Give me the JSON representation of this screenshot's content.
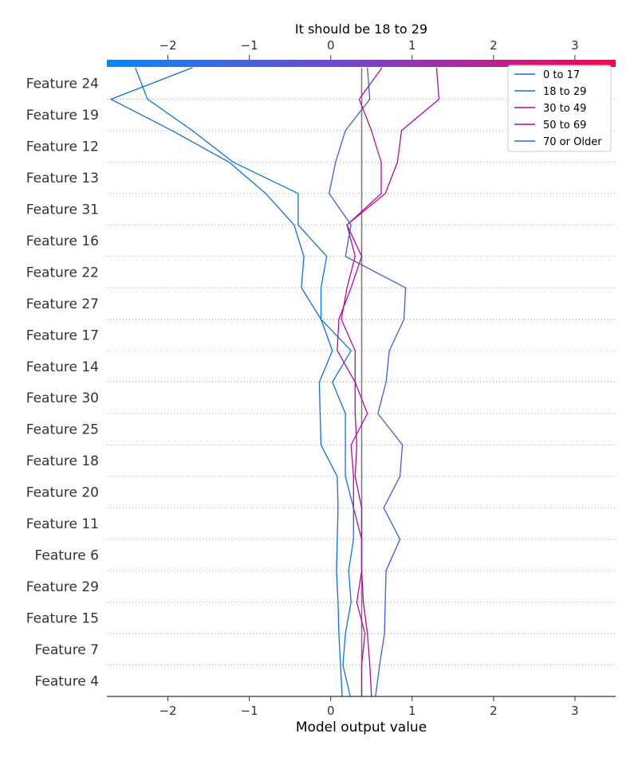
{
  "chart_data": {
    "type": "line",
    "title": "It should be 18 to 29",
    "xlabel": "Model output value",
    "xlim": [
      -2.75,
      3.5
    ],
    "xticks": [
      -2,
      -1,
      0,
      1,
      2,
      3
    ],
    "xtick_labels": [
      "−2",
      "−1",
      "0",
      "1",
      "2",
      "3"
    ],
    "base_value": 0.38,
    "colorbar": {
      "from": "#008bfb",
      "mid": "#7c3fd0",
      "to": "#ff0052"
    },
    "features": [
      "Feature 24",
      "Feature 19",
      "Feature 12",
      "Feature 13",
      "Feature 31",
      "Feature 16",
      "Feature 22",
      "Feature 27",
      "Feature 17",
      "Feature 14",
      "Feature 30",
      "Feature 25",
      "Feature 18",
      "Feature 20",
      "Feature 11",
      "Feature 6",
      "Feature 29",
      "Feature 15",
      "Feature 7",
      "Feature 4"
    ],
    "legend_position": "top-right",
    "series": [
      {
        "name": "0 to 17",
        "color": "#0f6fdc",
        "values": [
          -1.7,
          -2.7,
          -1.95,
          -1.25,
          -0.8,
          -0.45,
          -0.33,
          -0.36,
          -0.12,
          0.02,
          -0.14,
          -0.13,
          -0.12,
          0.08,
          0.09,
          0.08,
          0.07,
          0.09,
          0.1,
          0.12,
          0.14
        ]
      },
      {
        "name": "18 to 29",
        "color": "#0a74e0",
        "values": [
          -2.4,
          -2.25,
          -1.7,
          -1.2,
          -0.4,
          -0.4,
          -0.05,
          -0.12,
          -0.12,
          0.25,
          0.02,
          0.18,
          0.18,
          0.18,
          0.28,
          0.28,
          0.22,
          0.25,
          0.18,
          0.15,
          0.24
        ]
      },
      {
        "name": "30 to 49",
        "color": "#aa0da0",
        "values": [
          1.3,
          1.33,
          0.87,
          0.82,
          0.67,
          0.2,
          0.38,
          0.25,
          0.1,
          0.08,
          0.3,
          0.3,
          0.32,
          0.3,
          0.38,
          0.38,
          0.38,
          0.4,
          0.45,
          0.48,
          0.5
        ]
      },
      {
        "name": "50 to 69",
        "color": "#ba0aa0",
        "values": [
          0.63,
          0.35,
          0.5,
          0.62,
          0.62,
          0.2,
          0.3,
          0.2,
          0.13,
          0.3,
          0.3,
          0.45,
          0.25,
          0.28,
          0.28,
          0.38,
          0.38,
          0.32,
          0.42,
          0.38,
          0.38
        ]
      },
      {
        "name": "70 or Older",
        "color": "#3a5fd8",
        "values": [
          0.45,
          0.48,
          0.18,
          0.06,
          -0.02,
          0.25,
          0.18,
          0.92,
          0.9,
          0.72,
          0.68,
          0.58,
          0.88,
          0.85,
          0.65,
          0.85,
          0.68,
          0.67,
          0.66,
          0.6,
          0.55
        ]
      }
    ]
  }
}
